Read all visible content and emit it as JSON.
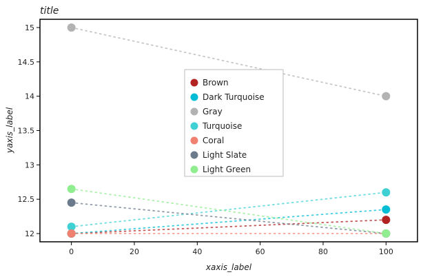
{
  "chart_data": {
    "type": "scatter",
    "title": "title",
    "xlabel": "xaxis_label",
    "ylabel": "yaxis_label",
    "xlim": [
      -10,
      110
    ],
    "ylim": [
      11.88,
      15.12
    ],
    "x_ticks": [
      "0",
      "20",
      "40",
      "60",
      "80",
      "100"
    ],
    "y_ticks": [
      "12",
      "12.5",
      "13",
      "13.5",
      "14",
      "14.5",
      "15"
    ],
    "grid": false,
    "legend_position": "center",
    "series": [
      {
        "name": "Brown",
        "color": "#b22222",
        "x": [
          0,
          100
        ],
        "y": [
          12.0,
          12.2
        ]
      },
      {
        "name": "Dark Turquoise",
        "color": "#00bcd4",
        "x": [
          0,
          100
        ],
        "y": [
          12.0,
          12.35
        ]
      },
      {
        "name": "Gray",
        "color": "#b3b3b3",
        "x": [
          0,
          100
        ],
        "y": [
          15.0,
          14.0
        ]
      },
      {
        "name": "Turquoise",
        "color": "#3fd0d4",
        "x": [
          0,
          100
        ],
        "y": [
          12.1,
          12.6
        ]
      },
      {
        "name": "Coral",
        "color": "#f08070",
        "x": [
          0,
          100
        ],
        "y": [
          12.0,
          12.0
        ]
      },
      {
        "name": "Light Slate",
        "color": "#6c7b8b",
        "x": [
          0,
          100
        ],
        "y": [
          12.45,
          12.0
        ]
      },
      {
        "name": "Light Green",
        "color": "#90ee90",
        "x": [
          0,
          100
        ],
        "y": [
          12.65,
          12.0
        ]
      }
    ]
  }
}
